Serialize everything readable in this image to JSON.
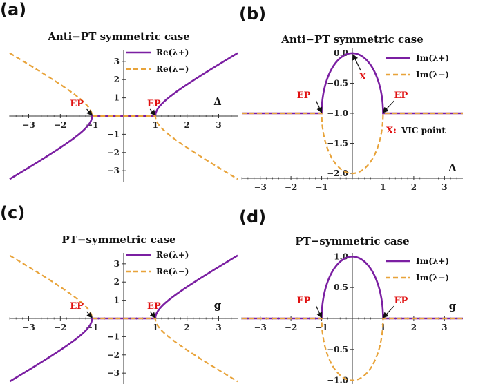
{
  "colors": {
    "plus": "#7b1fa2",
    "minus": "#e8a33a",
    "axis": "#333333",
    "ep": "#e01010"
  },
  "chart_data": [
    {
      "panel": "(a)",
      "type": "line",
      "title": "Anti−PT symmetric case",
      "xlabel": "Δ",
      "xlim": [
        -3.6,
        3.6
      ],
      "ylim": [
        -3.6,
        3.6
      ],
      "xticks": [
        -3,
        -2,
        -1,
        1,
        2,
        3
      ],
      "yticks": [
        -3,
        -2,
        -1,
        1,
        2,
        3
      ],
      "series": [
        {
          "name": "Re(λ+)",
          "role": "plus",
          "style": "solid",
          "function": "re_plus"
        },
        {
          "name": "Re(λ−)",
          "role": "minus",
          "style": "dashed",
          "function": "re_minus"
        }
      ],
      "annotations": [
        {
          "text": "EP",
          "x": -1,
          "y": 0
        },
        {
          "text": "EP",
          "x": 1,
          "y": 0
        }
      ]
    },
    {
      "panel": "(b)",
      "type": "line",
      "title": "Anti−PT symmetric case",
      "xlabel": "Δ",
      "xlim": [
        -3.6,
        3.6
      ],
      "ylim": [
        -2.08,
        0.08
      ],
      "xticks": [
        -3,
        -2,
        -1,
        1,
        2,
        3
      ],
      "yticks": [
        0.0,
        -0.5,
        -1.0,
        -1.5,
        -2.0
      ],
      "ytick_labels": [
        "0.0",
        "−0.5",
        "−1.0",
        "−1.5",
        "−2.0"
      ],
      "series": [
        {
          "name": "Im(λ+)",
          "role": "plus",
          "style": "solid",
          "function": "im_anti_plus"
        },
        {
          "name": "Im(λ−)",
          "role": "minus",
          "style": "dashed",
          "function": "im_anti_minus"
        }
      ],
      "annotations": [
        {
          "text": "EP",
          "x": -1,
          "y": -1
        },
        {
          "text": "EP",
          "x": 1,
          "y": -1
        },
        {
          "text": "X",
          "x": 0,
          "y": 0
        }
      ],
      "note": {
        "prefix": "X:",
        "text": "VIC point"
      }
    },
    {
      "panel": "(c)",
      "type": "line",
      "title": "PT−symmetric case",
      "xlabel": "g",
      "xlim": [
        -3.6,
        3.6
      ],
      "ylim": [
        -3.6,
        3.6
      ],
      "xticks": [
        -3,
        -2,
        -1,
        1,
        2,
        3
      ],
      "yticks": [
        -3,
        -2,
        -1,
        1,
        2,
        3
      ],
      "series": [
        {
          "name": "Re(λ+)",
          "role": "plus",
          "style": "solid",
          "function": "re_plus"
        },
        {
          "name": "Re(λ−)",
          "role": "minus",
          "style": "dashed",
          "function": "re_minus"
        }
      ],
      "annotations": [
        {
          "text": "EP",
          "x": -1,
          "y": 0
        },
        {
          "text": "EP",
          "x": 1,
          "y": 0
        }
      ]
    },
    {
      "panel": "(d)",
      "type": "line",
      "title": "PT−symmetric case",
      "xlabel": "g",
      "xlim": [
        -3.6,
        3.6
      ],
      "ylim": [
        -1.06,
        1.06
      ],
      "xticks": [
        -3,
        -2,
        -1,
        1,
        2,
        3
      ],
      "yticks": [
        1.0,
        0.5,
        -0.5,
        -1.0
      ],
      "ytick_labels": [
        "1.0",
        "0.5",
        "−0.5",
        "−1.0"
      ],
      "series": [
        {
          "name": "Im(λ+)",
          "role": "plus",
          "style": "solid",
          "function": "im_pt_plus"
        },
        {
          "name": "Im(λ−)",
          "role": "minus",
          "style": "dashed",
          "function": "im_pt_minus"
        }
      ],
      "annotations": [
        {
          "text": "EP",
          "x": -1,
          "y": 0
        },
        {
          "text": "EP",
          "x": 1,
          "y": 0
        }
      ]
    }
  ]
}
